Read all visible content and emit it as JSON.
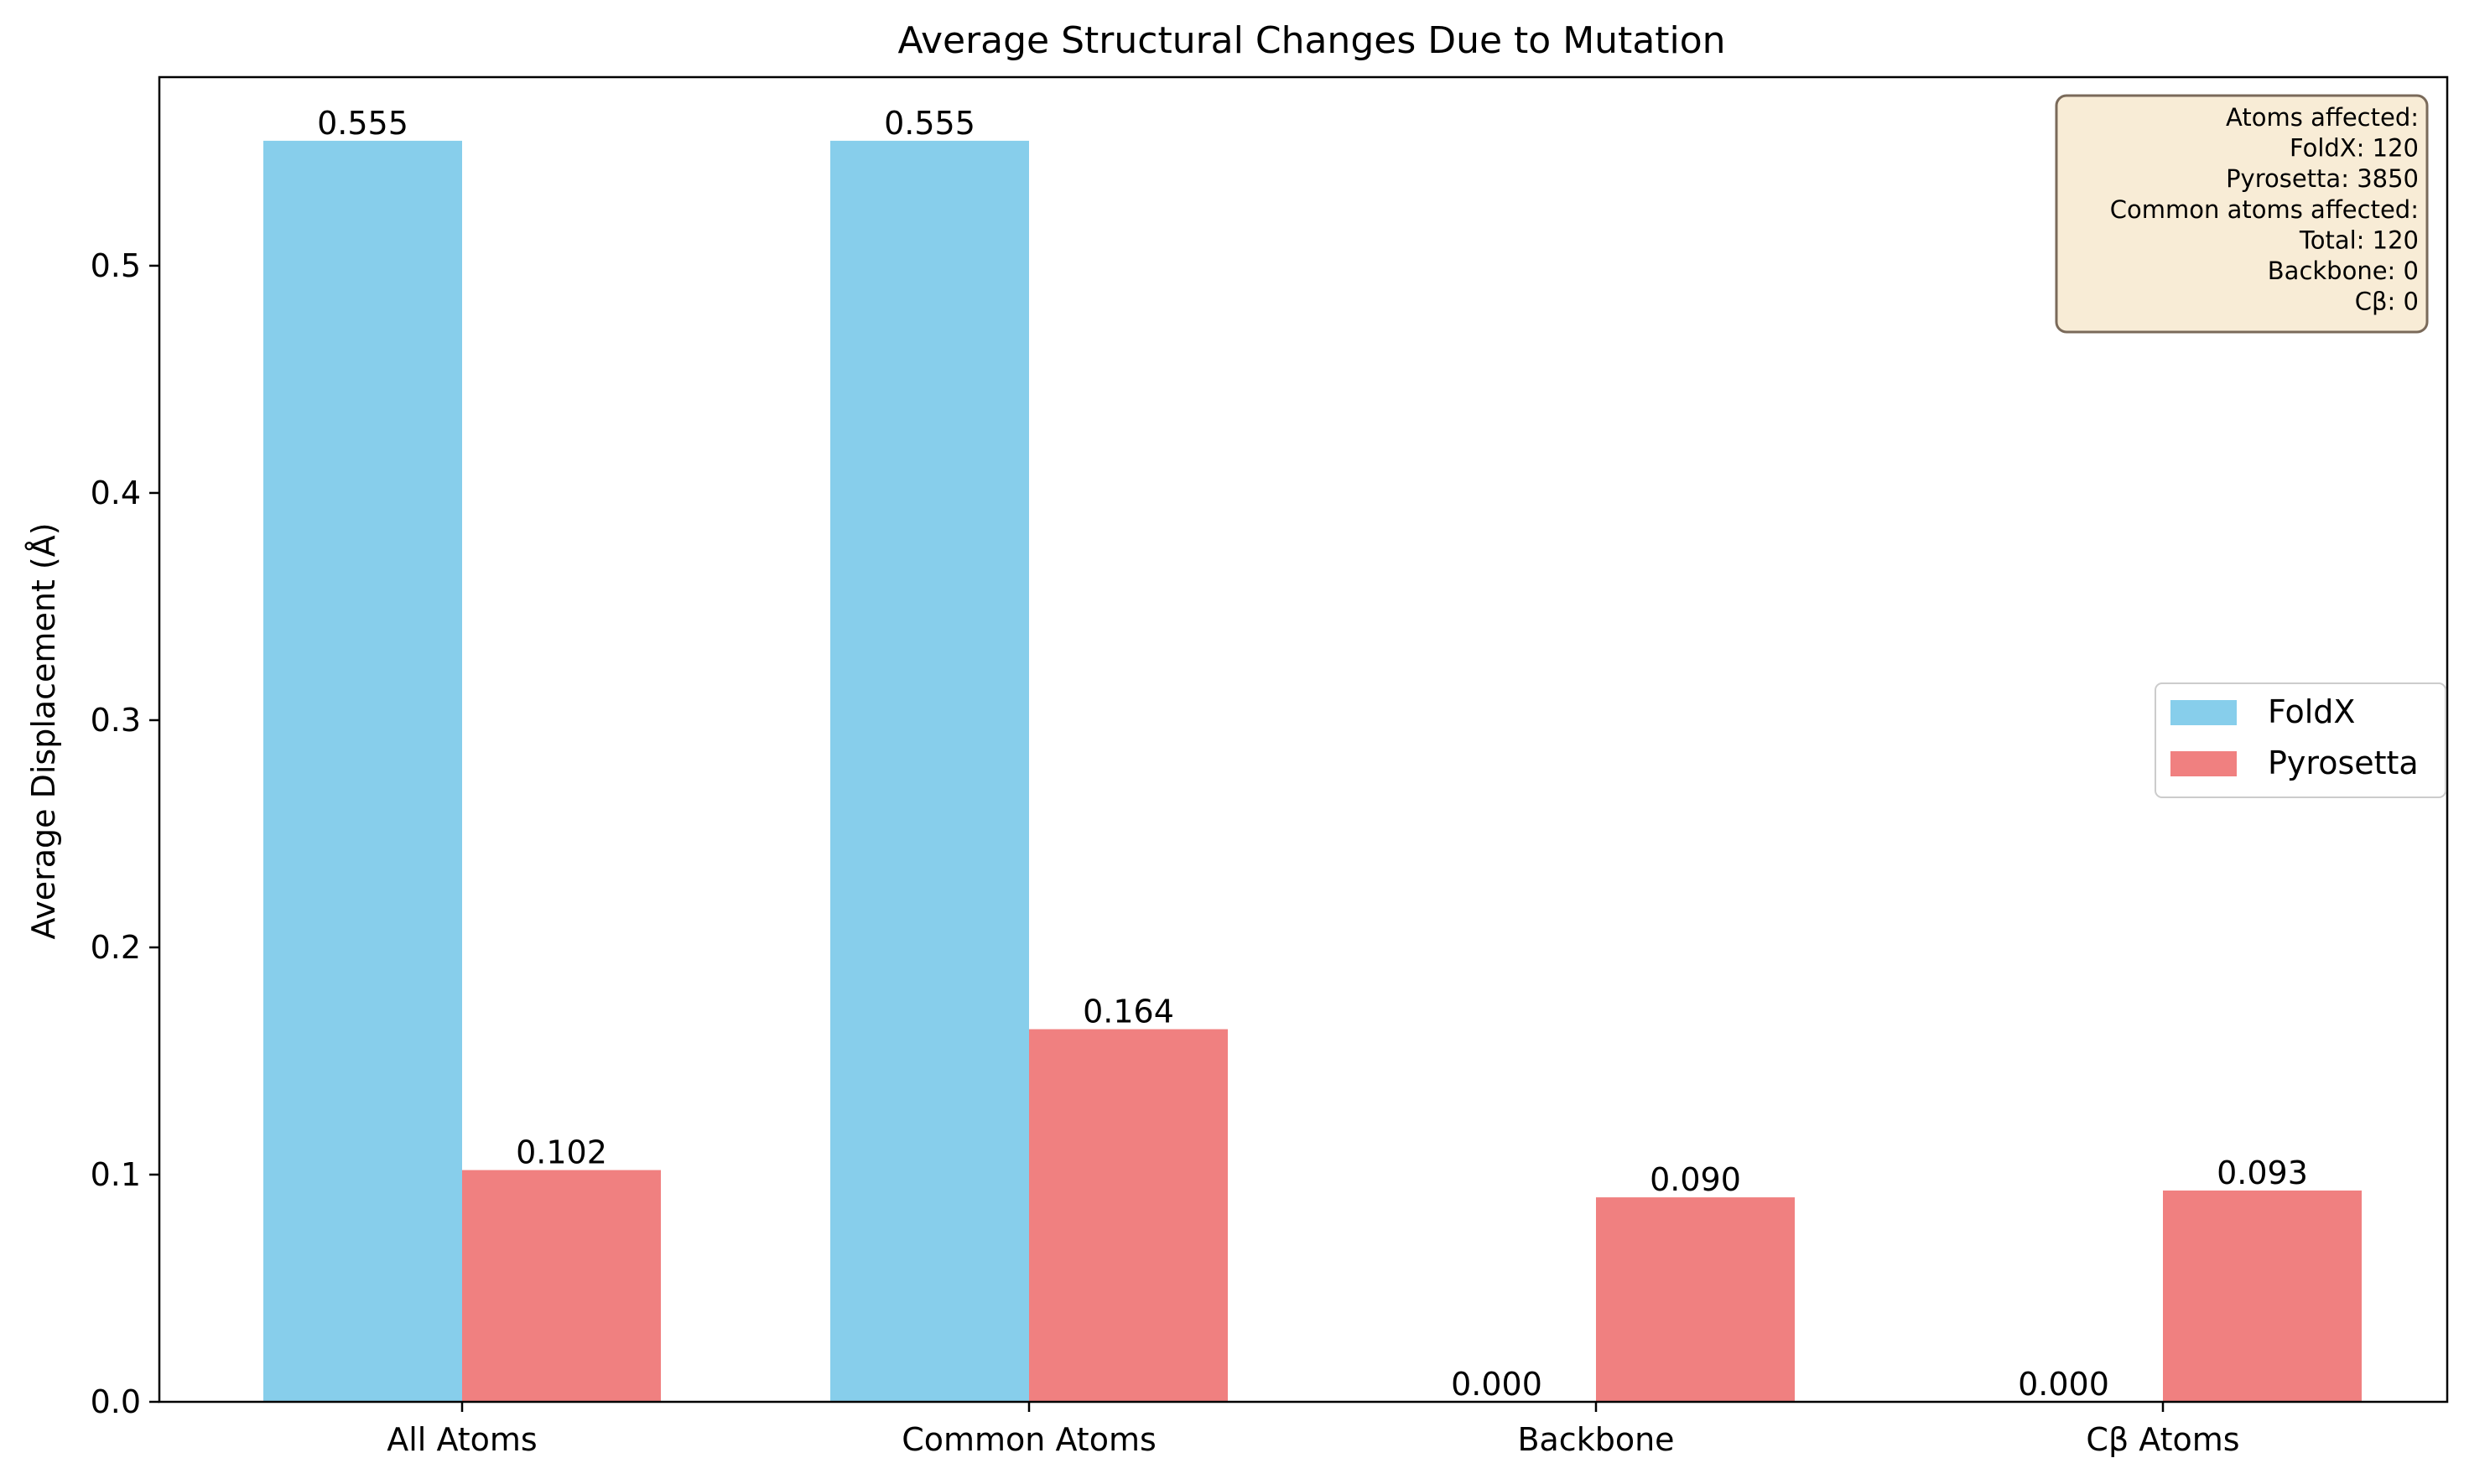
{
  "chart_data": {
    "type": "bar",
    "title": "Average Structural Changes Due to Mutation",
    "xlabel": "",
    "ylabel": "Average Displacement (Å)",
    "categories": [
      "All Atoms",
      "Common Atoms",
      "Backbone",
      "Cβ Atoms"
    ],
    "series": [
      {
        "name": "FoldX",
        "color": "#87ceeb",
        "values": [
          0.555,
          0.555,
          0.0,
          0.0
        ],
        "labels": [
          "0.555",
          "0.555",
          "0.000",
          "0.000"
        ]
      },
      {
        "name": "Pyrosetta",
        "color": "#f08080",
        "values": [
          0.102,
          0.164,
          0.09,
          0.093
        ],
        "labels": [
          "0.102",
          "0.164",
          "0.090",
          "0.093"
        ]
      }
    ],
    "ylim": [
      0,
      0.583
    ],
    "yticks": [
      0.0,
      0.1,
      0.2,
      0.3,
      0.4,
      0.5
    ],
    "ytick_labels": [
      "0.0",
      "0.1",
      "0.2",
      "0.3",
      "0.4",
      "0.5"
    ],
    "grid": false,
    "legend_position": "center-right",
    "annotation": {
      "position": "top-right",
      "lines": [
        "Atoms affected:",
        "FoldX: 120",
        "Pyrosetta: 3850",
        "Common atoms affected:",
        "Total: 120",
        "Backbone: 0",
        "Cβ: 0"
      ],
      "background": "#f8ecd6",
      "border": "#7a6a5a"
    }
  }
}
